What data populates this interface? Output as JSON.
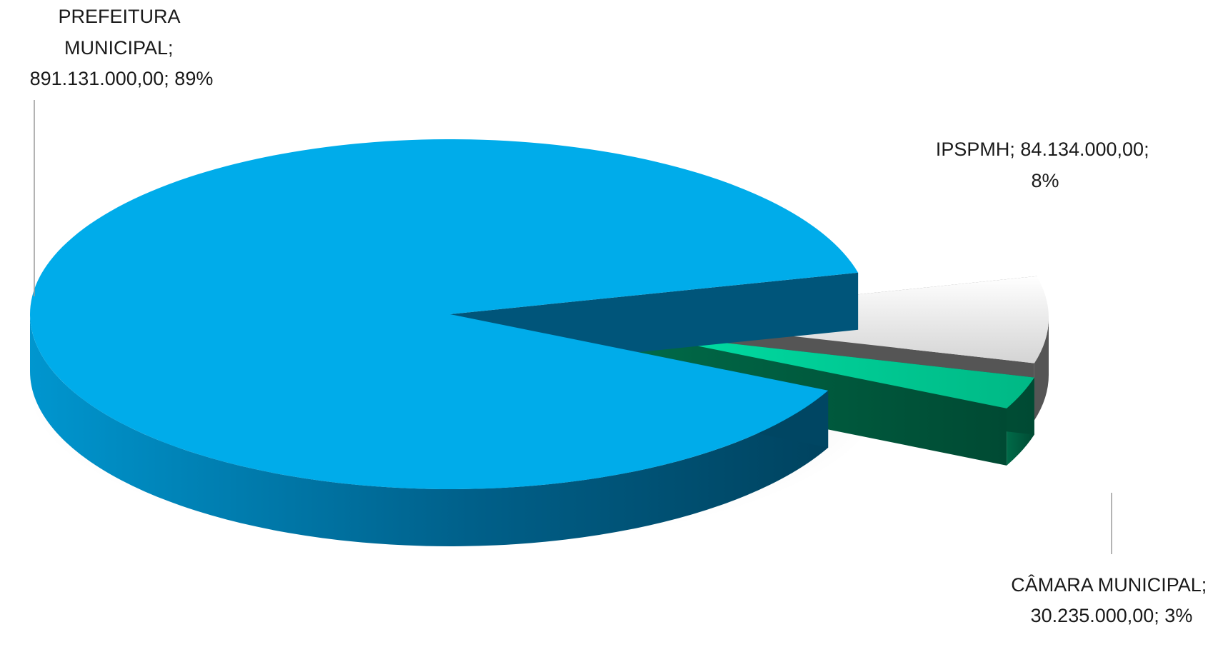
{
  "chart_data": {
    "type": "pie",
    "style": "3d-exploded",
    "slices": [
      {
        "name": "PREFEITURA MUNICIPAL",
        "value": 891131000.0,
        "value_label": "891.131.000,00",
        "percent": 89,
        "percent_label": "89%",
        "color": "#00acea"
      },
      {
        "name": "IPSPMH",
        "value": 84134000.0,
        "value_label": "84.134.000,00",
        "percent": 8,
        "percent_label": "8%",
        "color": "#dcdcdc"
      },
      {
        "name": "CÂMARA MUNICIPAL",
        "value": 30235000.0,
        "value_label": "30.235.000,00",
        "percent": 3,
        "percent_label": "3%",
        "color": "#00c894"
      }
    ]
  },
  "labels": {
    "prefeitura": [
      "PREFEITURA",
      "MUNICIPAL;",
      "891.131.000,00; 89%"
    ],
    "ipspmh": [
      "IPSPMH; 84.134.000,00;",
      "8%"
    ],
    "camara": [
      "CÂMARA MUNICIPAL;",
      "30.235.000,00; 3%"
    ]
  }
}
